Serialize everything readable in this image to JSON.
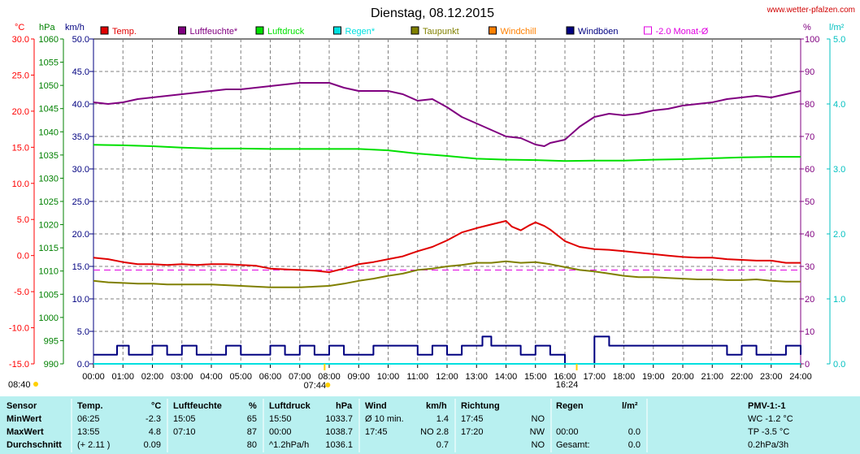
{
  "header": {
    "title": "Dienstag, 08.12.2015",
    "site": "www.wetter-pfalzen.com"
  },
  "axes": {
    "temp": {
      "unit": "°C",
      "ticks": [
        "30.0",
        "25.0",
        "20.0",
        "15.0",
        "10.0",
        "5.0",
        "0.0",
        "-5.0",
        "-10.0",
        "-15.0"
      ],
      "color": "#ff0000"
    },
    "pressure": {
      "unit": "hPa",
      "ticks": [
        "1060",
        "1055",
        "1050",
        "1045",
        "1040",
        "1035",
        "1030",
        "1025",
        "1020",
        "1015",
        "1010",
        "1005",
        "1000",
        "995",
        "990"
      ],
      "color": "#008000"
    },
    "wind": {
      "unit": "km/h",
      "ticks": [
        "50.0",
        "45.0",
        "40.0",
        "35.0",
        "30.0",
        "25.0",
        "20.0",
        "15.0",
        "10.0",
        "5.0",
        "0.0"
      ],
      "color": "#000080"
    },
    "humidity": {
      "unit": "%",
      "ticks": [
        "100",
        "90",
        "80",
        "70",
        "60",
        "50",
        "40",
        "30",
        "20",
        "10",
        "0"
      ],
      "color": "#800080"
    },
    "rain": {
      "unit": "l/m²",
      "ticks": [
        "5.0",
        "4.0",
        "3.0",
        "2.0",
        "1.0",
        "0.0"
      ],
      "color": "#00c0c0"
    },
    "time": {
      "ticks": [
        "00:00",
        "01:00",
        "02:00",
        "03:00",
        "04:00",
        "05:00",
        "06:00",
        "07:00",
        "08:00",
        "09:00",
        "10:00",
        "11:00",
        "12:00",
        "13:00",
        "14:00",
        "15:00",
        "16:00",
        "17:00",
        "18:00",
        "19:00",
        "20:00",
        "21:00",
        "22:00",
        "23:00",
        "24:00"
      ]
    }
  },
  "legend": [
    {
      "label": "Temp.",
      "color": "#e00000",
      "style": "filled"
    },
    {
      "label": "Luftfeuchte*",
      "color": "#800080",
      "style": "filled"
    },
    {
      "label": "Luftdruck",
      "color": "#00e000",
      "style": "filled"
    },
    {
      "label": "Regen*",
      "color": "#00e0e0",
      "style": "filled"
    },
    {
      "label": "Taupunkt",
      "color": "#808000",
      "style": "filled"
    },
    {
      "label": "Windchill",
      "color": "#ff8000",
      "style": "filled"
    },
    {
      "label": "Windböen",
      "color": "#000080",
      "style": "filled"
    },
    {
      "label": "-2.0 Monat-Ø",
      "color": "#e000e0",
      "style": "outline"
    }
  ],
  "sun": {
    "sunrise": "08:40",
    "sunrise_marker": "07:44",
    "sunset": "16:24"
  },
  "chart_data": {
    "type": "line",
    "title": "Dienstag, 08.12.2015",
    "x_unit": "hours",
    "xlim": [
      0,
      24
    ],
    "monthly_avg_temp": -2.0,
    "series": [
      {
        "name": "Temp.",
        "axis": "temp",
        "color": "#e00000",
        "x": [
          0,
          0.5,
          1,
          1.5,
          2,
          2.5,
          3,
          3.5,
          4,
          4.5,
          5,
          5.5,
          6,
          6.5,
          7,
          7.5,
          8,
          8.5,
          9,
          9.5,
          10,
          10.5,
          11,
          11.5,
          12,
          12.5,
          13,
          13.5,
          14,
          14.2,
          14.5,
          14.8,
          15,
          15.3,
          15.5,
          16,
          16.5,
          17,
          17.5,
          18,
          18.5,
          19,
          19.5,
          20,
          20.5,
          21,
          21.5,
          22,
          22.5,
          23,
          23.5,
          24
        ],
        "values": [
          -0.3,
          -0.5,
          -0.9,
          -1.2,
          -1.2,
          -1.3,
          -1.2,
          -1.3,
          -1.2,
          -1.2,
          -1.3,
          -1.4,
          -1.8,
          -1.9,
          -2.0,
          -2.1,
          -2.3,
          -1.8,
          -1.2,
          -0.9,
          -0.5,
          -0.1,
          0.6,
          1.2,
          2.1,
          3.2,
          3.8,
          4.3,
          4.8,
          4.0,
          3.5,
          4.2,
          4.6,
          4.1,
          3.6,
          2.0,
          1.2,
          0.9,
          0.8,
          0.6,
          0.4,
          0.2,
          0.0,
          -0.2,
          -0.3,
          -0.3,
          -0.5,
          -0.6,
          -0.7,
          -0.7,
          -1.0,
          -1.0
        ]
      },
      {
        "name": "Luftfeuchte*",
        "axis": "humidity",
        "color": "#800080",
        "x": [
          0,
          0.5,
          1,
          1.5,
          2,
          2.5,
          3,
          3.5,
          4,
          4.5,
          5,
          5.5,
          6,
          6.5,
          7,
          7.5,
          8,
          8.5,
          9,
          9.5,
          10,
          10.5,
          11,
          11.5,
          12,
          12.5,
          13,
          13.5,
          14,
          14.5,
          15,
          15.3,
          15.5,
          16,
          16.5,
          17,
          17.5,
          18,
          18.5,
          19,
          19.5,
          20,
          20.5,
          21,
          21.5,
          22,
          22.5,
          23,
          23.5,
          24
        ],
        "values": [
          80.5,
          80.0,
          80.5,
          81.5,
          82.0,
          82.5,
          83.0,
          83.5,
          84.0,
          84.5,
          84.5,
          85.0,
          85.5,
          86.0,
          86.5,
          86.5,
          86.5,
          85.0,
          84.0,
          84.0,
          84.0,
          83.0,
          81.0,
          81.5,
          79.0,
          76.0,
          74.0,
          72.0,
          70.0,
          69.5,
          67.5,
          67.0,
          68.0,
          69.0,
          73.0,
          76.0,
          77.0,
          76.5,
          77.0,
          78.0,
          78.5,
          79.5,
          80.0,
          80.5,
          81.5,
          82.0,
          82.5,
          82.0,
          83.0,
          84.0
        ]
      },
      {
        "name": "Luftdruck",
        "axis": "pressure",
        "color": "#00e000",
        "x": [
          0,
          1,
          2,
          3,
          4,
          5,
          6,
          7,
          8,
          9,
          10,
          11,
          12,
          13,
          14,
          15,
          16,
          17,
          18,
          19,
          20,
          21,
          22,
          23,
          24
        ],
        "values": [
          1037.2,
          1037.1,
          1036.9,
          1036.6,
          1036.4,
          1036.4,
          1036.3,
          1036.3,
          1036.3,
          1036.3,
          1036.0,
          1035.3,
          1034.8,
          1034.2,
          1034.0,
          1033.9,
          1033.7,
          1033.8,
          1033.8,
          1034.0,
          1034.1,
          1034.3,
          1034.5,
          1034.6,
          1034.6
        ]
      },
      {
        "name": "Taupunkt",
        "axis": "temp",
        "color": "#808000",
        "x": [
          0,
          0.5,
          1,
          1.5,
          2,
          2.5,
          3,
          3.5,
          4,
          4.5,
          5,
          5.5,
          6,
          6.5,
          7,
          7.5,
          8,
          8.5,
          9,
          9.5,
          10,
          10.5,
          11,
          11.5,
          12,
          12.5,
          13,
          13.5,
          14,
          14.5,
          15,
          15.5,
          16,
          16.5,
          17,
          17.5,
          18,
          18.5,
          19,
          19.5,
          20,
          20.5,
          21,
          21.5,
          22,
          22.5,
          23,
          23.5,
          24
        ],
        "values": [
          -3.5,
          -3.7,
          -3.8,
          -3.9,
          -3.9,
          -4.0,
          -4.0,
          -4.0,
          -4.0,
          -4.1,
          -4.2,
          -4.3,
          -4.4,
          -4.4,
          -4.4,
          -4.3,
          -4.2,
          -3.9,
          -3.5,
          -3.2,
          -2.8,
          -2.5,
          -2.0,
          -1.8,
          -1.5,
          -1.3,
          -1.0,
          -1.0,
          -0.8,
          -1.0,
          -0.9,
          -1.2,
          -1.6,
          -2.0,
          -2.2,
          -2.5,
          -2.8,
          -3.0,
          -3.0,
          -3.1,
          -3.2,
          -3.3,
          -3.3,
          -3.4,
          -3.4,
          -3.3,
          -3.5,
          -3.6,
          -3.6
        ]
      },
      {
        "name": "Windböen",
        "axis": "wind",
        "color": "#000080",
        "x": [
          0,
          0.6,
          0.8,
          1.0,
          1.2,
          1.5,
          2.0,
          2.5,
          3.0,
          3.5,
          4.0,
          4.5,
          5.0,
          5.5,
          6.0,
          6.5,
          7.0,
          7.5,
          8.0,
          8.5,
          9.0,
          9.5,
          10.0,
          10.5,
          11.0,
          11.5,
          12.0,
          12.5,
          13.0,
          13.2,
          13.5,
          14.0,
          14.5,
          15.0,
          15.5,
          16.0,
          16.2,
          16.5,
          17.0,
          17.5,
          18.0,
          18.5,
          19.0,
          19.5,
          20.0,
          20.5,
          21.0,
          21.5,
          22.0,
          22.5,
          23.0,
          23.5,
          24.0
        ],
        "values": [
          1.4,
          1.4,
          2.8,
          2.8,
          1.4,
          1.4,
          2.8,
          1.4,
          2.8,
          1.4,
          1.4,
          2.8,
          1.4,
          1.4,
          2.8,
          1.4,
          2.8,
          1.4,
          2.8,
          1.4,
          1.4,
          2.8,
          2.8,
          2.8,
          1.4,
          2.8,
          1.4,
          2.8,
          2.8,
          4.2,
          2.8,
          2.8,
          1.4,
          2.8,
          1.4,
          0.0,
          0.0,
          0.0,
          4.2,
          2.8,
          2.8,
          2.8,
          2.8,
          2.8,
          2.8,
          2.8,
          2.8,
          1.4,
          2.8,
          1.4,
          1.4,
          2.8,
          1.4
        ]
      },
      {
        "name": "Regen*",
        "axis": "rain",
        "color": "#00e0e0",
        "x": [
          0,
          24
        ],
        "values": [
          0.0,
          0.0
        ]
      }
    ]
  },
  "table": {
    "headers": {
      "sensor": "Sensor",
      "temp": "Temp.",
      "temp_unit": "°C",
      "hum": "Luftfeuchte",
      "hum_unit": "%",
      "press": "Luftdruck",
      "press_unit": "hPa",
      "wind": "Wind",
      "wind_unit": "km/h",
      "dir": "Richtung",
      "rain": "Regen",
      "rain_unit": "l/m²",
      "pmv": "PMV-1:-1"
    },
    "rows": [
      {
        "label": "MinWert",
        "temp_time": "06:25",
        "temp_val": "-2.3",
        "hum_time": "15:05",
        "hum_val": "65",
        "press_time": "15:50",
        "press_val": "1033.7",
        "wind_time": "Ø 10 min.",
        "wind_val": "1.4",
        "dir_time": "17:45",
        "dir_val": "NO",
        "rain_time": "",
        "rain_val": "",
        "pmv": "WC -1.2 °C"
      },
      {
        "label": "MaxWert",
        "temp_time": "13:55",
        "temp_val": "4.8",
        "hum_time": "07:10",
        "hum_val": "87",
        "press_time": "00:00",
        "press_val": "1038.7",
        "wind_time": "17:45",
        "wind_val": "NO 2.8",
        "dir_time": "17:20",
        "dir_val": "NW",
        "rain_time": "00:00",
        "rain_val": "0.0",
        "pmv": "TP -3.5 °C"
      },
      {
        "label": "Durchschnitt",
        "temp_time": "(+ 2.11 )",
        "temp_val": "0.09",
        "hum_time": "",
        "hum_val": "80",
        "press_time": "^1.2hPa/h",
        "press_val": "1036.1",
        "wind_time": "",
        "wind_val": "0.7",
        "dir_time": "",
        "dir_val": "NO",
        "rain_time": "Gesamt:",
        "rain_val": "0.0",
        "pmv": "0.2hPa/3h"
      }
    ]
  }
}
